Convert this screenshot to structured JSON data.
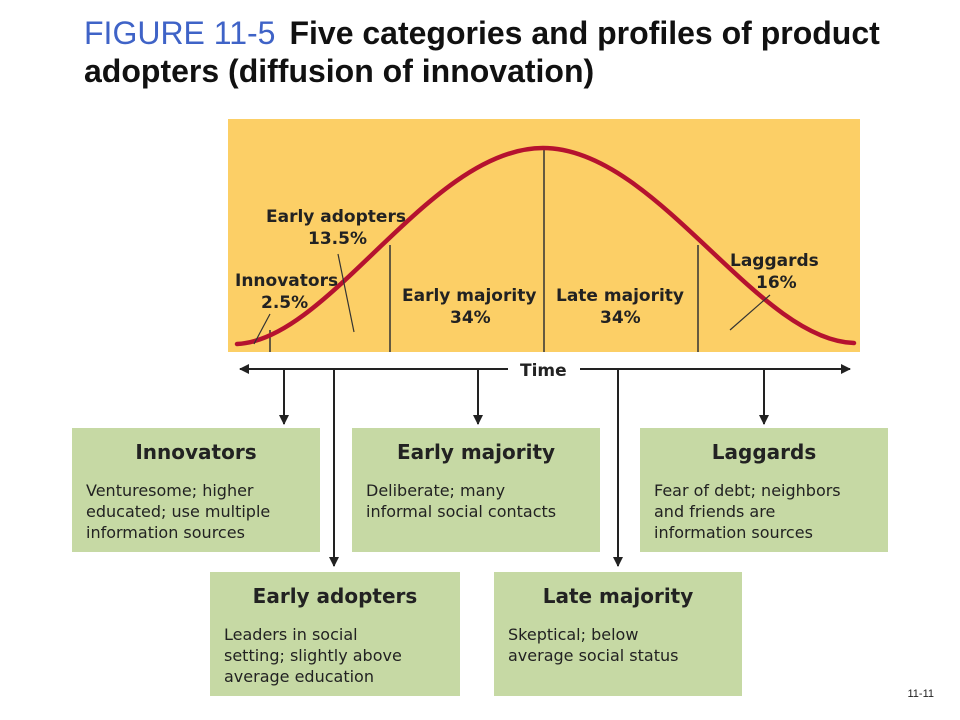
{
  "title": {
    "figure": "FIGURE 11-5",
    "text": "Five categories and profiles of product adopters (diffusion of innovation)"
  },
  "colors": {
    "title_figure": "#3f63c7",
    "chart_bg": "#fccf66",
    "curve": "#b5122f",
    "box_bg": "#c6d9a4"
  },
  "axis": {
    "label": "Time"
  },
  "segments": [
    {
      "id": "innovators",
      "name": "Innovators",
      "percent": "2.5%"
    },
    {
      "id": "early-adopters",
      "name": "Early adopters",
      "percent": "13.5%"
    },
    {
      "id": "early-majority",
      "name": "Early majority",
      "percent": "34%"
    },
    {
      "id": "late-majority",
      "name": "Late majority",
      "percent": "34%"
    },
    {
      "id": "laggards",
      "name": "Laggards",
      "percent": "16%"
    }
  ],
  "profiles": {
    "innovators": {
      "heading": "Innovators",
      "description": "Venturesome; higher\neducated; use multiple\ninformation sources"
    },
    "early_majority": {
      "heading": "Early majority",
      "description": "Deliberate; many\ninformal social contacts"
    },
    "laggards": {
      "heading": "Laggards",
      "description": "Fear of debt; neighbors\nand friends are\ninformation sources"
    },
    "early_adopters": {
      "heading": "Early adopters",
      "description": "Leaders in social\nsetting; slightly above\naverage education"
    },
    "late_majority": {
      "heading": "Late majority",
      "description": "Skeptical; below\naverage social status"
    }
  },
  "page_number": "11-11"
}
